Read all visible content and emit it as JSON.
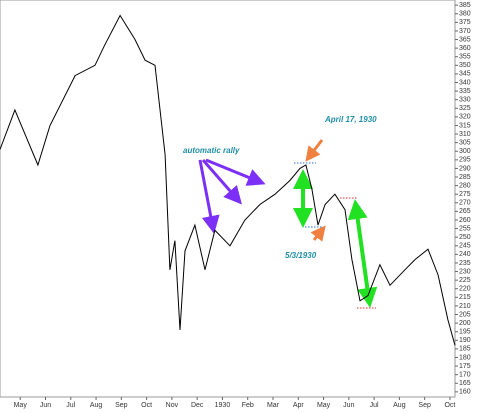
{
  "chart_data": {
    "type": "line",
    "annotations": [
      "automatic rally",
      "April 17, 1930",
      "5/3/1930"
    ],
    "x": [
      -0.3,
      0.29,
      1.2,
      1.68,
      2.67,
      3.46,
      3.85,
      4.45,
      5.04,
      5.44,
      5.83,
      6.23,
      6.42,
      6.62,
      6.82,
      7.02,
      7.41,
      7.81,
      8.2,
      8.8,
      9.39,
      9.98,
      10.58,
      11.17,
      11.57,
      11.8,
      12.04,
      12.28,
      12.56,
      12.95,
      13.35,
      13.62,
      13.94,
      14.26,
      14.73,
      15.13,
      15.72,
      16.12,
      16.63,
      17.03,
      17.42,
      17.7
    ],
    "values": [
      301,
      324,
      292,
      315,
      344,
      350,
      362,
      379,
      365,
      353,
      350,
      298,
      231,
      248,
      196,
      242,
      257,
      231,
      254,
      245,
      260,
      269,
      275,
      283,
      290,
      292,
      278,
      257,
      269,
      275,
      266,
      237,
      213,
      216,
      234,
      222,
      231,
      237,
      243,
      228,
      202,
      187
    ],
    "color": "#000000",
    "xlim": [
      -0.3,
      17.7
    ],
    "xticks": [
      {
        "value": 0.5,
        "label": "May"
      },
      {
        "value": 1.5,
        "label": "Jun"
      },
      {
        "value": 2.5,
        "label": "Jul"
      },
      {
        "value": 3.5,
        "label": "Aug"
      },
      {
        "value": 4.5,
        "label": "Sep"
      },
      {
        "value": 5.5,
        "label": "Oct"
      },
      {
        "value": 6.5,
        "label": "Nov"
      },
      {
        "value": 7.5,
        "label": "Dec"
      },
      {
        "value": 8.5,
        "label": "1930"
      },
      {
        "value": 9.5,
        "label": "Feb"
      },
      {
        "value": 10.5,
        "label": "Mar"
      },
      {
        "value": 11.5,
        "label": "Apr"
      },
      {
        "value": 12.5,
        "label": "May"
      },
      {
        "value": 13.5,
        "label": "Jun"
      },
      {
        "value": 14.5,
        "label": "Jul"
      },
      {
        "value": 15.5,
        "label": "Aug"
      },
      {
        "value": 16.5,
        "label": "Sep"
      },
      {
        "value": 17.5,
        "label": "Oct"
      }
    ],
    "ylim": [
      157,
      388
    ],
    "yticks": [
      160,
      165,
      170,
      175,
      180,
      185,
      190,
      195,
      200,
      205,
      210,
      215,
      220,
      225,
      230,
      235,
      240,
      245,
      250,
      255,
      260,
      265,
      270,
      275,
      280,
      285,
      290,
      295,
      300,
      305,
      310,
      315,
      320,
      325,
      330,
      335,
      340,
      345,
      350,
      355,
      360,
      365,
      370,
      375,
      380,
      385
    ],
    "grid": false
  }
}
